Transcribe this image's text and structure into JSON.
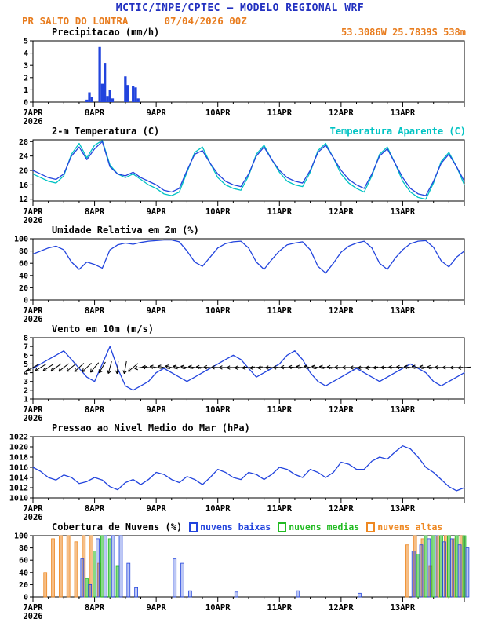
{
  "header": {
    "title": "MCTIC/INPE/CPTEC — MODELO REGIONAL WRF",
    "station": "PR SALTO DO LONTRA",
    "run": "07/04/2026 00Z",
    "location": "53.3086W 25.7839S 538m"
  },
  "colors": {
    "title_blue": "#2230c0",
    "orange": "#e87c1e",
    "line_blue": "#2244dd",
    "cyan": "#00c3c3",
    "cloud_low": "#2244dd",
    "cloud_mid": "#22bb22",
    "cloud_high": "#ee8822",
    "axis": "#000000",
    "wind_arrow": "#000000"
  },
  "x_axis": {
    "lim": [
      0,
      168
    ],
    "major_step": 24,
    "minor_step": 6,
    "labels": [
      "7APR",
      "8APR",
      "9APR",
      "10APR",
      "11APR",
      "12APR",
      "13APR"
    ],
    "year_label": "2026"
  },
  "chart_data": [
    {
      "id": "precipitation",
      "type": "bar",
      "title": "Precipitacao (mm/h)",
      "ylabel": "mm/h",
      "ylim": [
        0,
        5
      ],
      "yticks": [
        0,
        1,
        2,
        3,
        4,
        5
      ],
      "series": [
        {
          "name": "precipitacao",
          "kind": "bar",
          "color": "#2244dd",
          "bar_width_hours": 1,
          "fill_opacity": 1,
          "x": [
            21,
            22,
            23,
            26,
            27,
            28,
            29,
            30,
            31,
            36,
            37,
            39,
            40,
            41
          ],
          "values": [
            0.2,
            0.8,
            0.4,
            4.5,
            1.5,
            3.2,
            0.5,
            1.0,
            0.3,
            2.1,
            1.4,
            1.3,
            1.2,
            0.3
          ]
        }
      ]
    },
    {
      "id": "temperature",
      "type": "line",
      "title": "2-m Temperatura (C)",
      "title_right": "Temperatura Aparente (C)",
      "ylim": [
        11.5,
        28.5
      ],
      "yticks": [
        12,
        16,
        20,
        24,
        28
      ],
      "series": [
        {
          "name": "temperatura-aparente",
          "kind": "line",
          "color": "#00c3c3",
          "x_start": 0,
          "x_step": 3,
          "values": [
            19,
            18,
            17,
            16.5,
            18.5,
            24.5,
            27.5,
            23.5,
            27,
            28.3,
            21.5,
            19,
            18,
            19,
            17.5,
            16,
            15,
            13.5,
            13,
            14,
            19.5,
            25,
            26.5,
            22,
            18,
            16,
            15,
            14.5,
            18.5,
            24.5,
            27,
            23,
            19.5,
            17,
            16,
            15.5,
            19.5,
            25.5,
            27.5,
            23.5,
            19,
            16.5,
            15,
            14,
            18.5,
            24.5,
            26.5,
            22,
            17,
            14,
            12.5,
            12,
            16.5,
            22.5,
            25,
            21,
            16
          ]
        },
        {
          "name": "temperatura-2m",
          "kind": "line",
          "color": "#2244dd",
          "x_start": 0,
          "x_step": 3,
          "values": [
            20,
            19,
            18,
            17.5,
            19,
            24,
            26.5,
            23,
            26,
            28,
            21,
            19,
            18.5,
            19.5,
            18,
            17,
            16,
            14.5,
            14,
            15,
            20,
            24.5,
            25.5,
            22,
            19,
            17,
            16,
            15.5,
            19,
            24,
            26.5,
            23,
            20,
            18,
            17,
            16.5,
            20,
            25,
            27,
            23.5,
            20,
            17.5,
            16,
            15,
            19,
            24,
            26,
            22,
            18,
            15,
            13.5,
            13,
            17,
            22,
            24.5,
            21,
            17
          ]
        }
      ]
    },
    {
      "id": "relative-humidity",
      "type": "line",
      "title": "Umidade Relativa em 2m (%)",
      "ylim": [
        0,
        100
      ],
      "yticks": [
        0,
        20,
        40,
        60,
        80,
        100
      ],
      "series": [
        {
          "name": "umidade-relativa",
          "kind": "line",
          "color": "#2244dd",
          "x_start": 0,
          "x_step": 3,
          "values": [
            75,
            80,
            85,
            88,
            82,
            62,
            50,
            62,
            58,
            52,
            82,
            90,
            93,
            91,
            94,
            96,
            97,
            98,
            98,
            95,
            80,
            62,
            55,
            70,
            85,
            92,
            95,
            96,
            85,
            62,
            50,
            66,
            80,
            90,
            93,
            95,
            82,
            55,
            44,
            60,
            78,
            88,
            93,
            96,
            85,
            60,
            50,
            68,
            82,
            92,
            96,
            97,
            86,
            64,
            54,
            70,
            80
          ]
        }
      ]
    },
    {
      "id": "wind-10m",
      "type": "line",
      "title": "Vento em 10m (m/s)",
      "ylim": [
        1,
        8
      ],
      "yticks": [
        1,
        2,
        3,
        4,
        5,
        6,
        7,
        8
      ],
      "series": [
        {
          "name": "velocidade-vento",
          "kind": "line",
          "color": "#2244dd",
          "x_start": 0,
          "x_step": 3,
          "values": [
            4.5,
            5,
            5.5,
            6,
            6.5,
            5.5,
            4.5,
            3.5,
            3,
            5,
            7,
            4.5,
            2.5,
            2,
            2.5,
            3,
            4,
            4.5,
            4,
            3.5,
            3,
            3.5,
            4,
            4.5,
            5,
            5.5,
            6,
            5.5,
            4.5,
            3.5,
            4,
            4.5,
            5,
            6,
            6.5,
            5.5,
            4,
            3,
            2.5,
            3,
            3.5,
            4,
            4.5,
            4,
            3.5,
            3,
            3.5,
            4,
            4.5,
            5,
            4.5,
            4,
            3,
            2.5,
            3,
            3.5,
            4
          ]
        },
        {
          "name": "direcao-vento-setas",
          "kind": "arrows",
          "color": "#000000",
          "y": 4.6,
          "x_start": 0,
          "x_step": 3,
          "angles_deg": [
            150,
            148,
            146,
            144,
            142,
            140,
            138,
            136,
            130,
            120,
            105,
            95,
            100,
            140,
            170,
            185,
            190,
            192,
            194,
            192,
            190,
            188,
            186,
            184,
            182,
            180,
            178,
            176,
            175,
            174,
            176,
            178,
            180,
            183,
            186,
            189,
            192,
            190,
            188,
            185,
            182,
            180,
            178,
            176,
            175,
            177,
            180,
            183,
            186,
            188,
            190,
            188,
            185,
            182,
            180,
            178,
            176
          ]
        }
      ]
    },
    {
      "id": "sea-level-pressure",
      "type": "line",
      "title": "Pressao ao Nivel Medio do Mar (hPa)",
      "ylim": [
        1010,
        1022
      ],
      "yticks": [
        1010,
        1012,
        1014,
        1016,
        1018,
        1020,
        1022
      ],
      "series": [
        {
          "name": "pressao-nivel-mar",
          "kind": "line",
          "color": "#2244dd",
          "x_start": 0,
          "x_step": 3,
          "values": [
            1016,
            1015.2,
            1014,
            1013.5,
            1014.5,
            1014,
            1012.8,
            1013.2,
            1014,
            1013.5,
            1012.2,
            1011.6,
            1013,
            1013.6,
            1012.6,
            1013.6,
            1015,
            1014.6,
            1013.6,
            1013,
            1014.2,
            1013.6,
            1012.6,
            1014,
            1015.6,
            1015,
            1014,
            1013.6,
            1015,
            1014.6,
            1013.6,
            1014.6,
            1016,
            1015.6,
            1014.6,
            1014,
            1015.6,
            1015,
            1014,
            1015,
            1017,
            1016.6,
            1015.6,
            1015.6,
            1017.2,
            1018,
            1017.6,
            1019,
            1020.2,
            1019.6,
            1018,
            1016,
            1015,
            1013.6,
            1012.2,
            1011.4,
            1012
          ]
        }
      ]
    },
    {
      "id": "cloud-cover",
      "type": "bar",
      "title": "Cobertura de Nuvens (%)",
      "legend": [
        {
          "label": "nuvens baixas",
          "color": "#2244dd"
        },
        {
          "label": "nuvens medias",
          "color": "#22bb22"
        },
        {
          "label": "nuvens altas",
          "color": "#ee8822"
        }
      ],
      "ylim": [
        0,
        100
      ],
      "yticks": [
        0,
        20,
        40,
        60,
        80,
        100
      ],
      "series": [
        {
          "name": "nuvens-altas",
          "kind": "bar",
          "color": "#ee8822",
          "bar_width_hours": 1.2,
          "offset_hours": -1.2,
          "fill_opacity": 0.55,
          "stroke": true,
          "x_start": 0,
          "x_step": 3,
          "values": [
            0,
            0,
            40,
            95,
            100,
            100,
            90,
            100,
            100,
            55,
            0,
            0,
            0,
            0,
            0,
            0,
            0,
            0,
            0,
            0,
            0,
            0,
            0,
            0,
            0,
            0,
            0,
            0,
            0,
            0,
            0,
            0,
            0,
            0,
            0,
            0,
            0,
            0,
            0,
            0,
            0,
            0,
            0,
            0,
            0,
            0,
            0,
            0,
            0,
            85,
            100,
            95,
            50,
            100,
            100,
            95,
            100
          ]
        },
        {
          "name": "nuvens-medias",
          "kind": "bar",
          "color": "#22bb22",
          "bar_width_hours": 1.2,
          "offset_hours": 0,
          "fill_opacity": 0.55,
          "stroke": true,
          "x_start": 0,
          "x_step": 3,
          "values": [
            0,
            0,
            0,
            0,
            0,
            0,
            0,
            30,
            75,
            100,
            95,
            50,
            0,
            0,
            0,
            0,
            0,
            0,
            0,
            0,
            0,
            0,
            0,
            0,
            0,
            0,
            0,
            0,
            0,
            0,
            0,
            0,
            0,
            0,
            0,
            0,
            0,
            0,
            0,
            0,
            0,
            0,
            0,
            0,
            0,
            0,
            0,
            0,
            0,
            0,
            70,
            100,
            100,
            100,
            100,
            100,
            100
          ]
        },
        {
          "name": "nuvens-baixas",
          "kind": "bar",
          "color": "#2244dd",
          "bar_width_hours": 1.2,
          "offset_hours": 1.2,
          "fill_opacity": 0.3,
          "stroke": true,
          "x_start": 0,
          "x_step": 3,
          "values": [
            0,
            0,
            0,
            0,
            0,
            0,
            62,
            20,
            95,
            100,
            100,
            100,
            55,
            15,
            0,
            0,
            0,
            0,
            62,
            55,
            10,
            0,
            0,
            0,
            0,
            0,
            8,
            0,
            0,
            0,
            0,
            0,
            0,
            0,
            10,
            0,
            0,
            0,
            0,
            0,
            0,
            0,
            6,
            0,
            0,
            0,
            0,
            0,
            0,
            75,
            85,
            95,
            100,
            90,
            95,
            85,
            80
          ]
        }
      ]
    }
  ]
}
